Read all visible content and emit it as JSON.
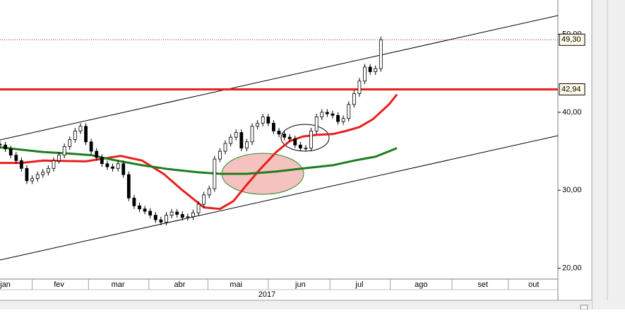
{
  "chart_data": {
    "type": "candlestick",
    "x": [
      0,
      2,
      4,
      6,
      8,
      10,
      12,
      14,
      16,
      18,
      20,
      22,
      24,
      26,
      28,
      30,
      32,
      34,
      36,
      38,
      40,
      42,
      44,
      46,
      48,
      50,
      52,
      54,
      56,
      58,
      60,
      62,
      64,
      66,
      68,
      70,
      72,
      74,
      76,
      78,
      80,
      82,
      84,
      86,
      88,
      90,
      92,
      94,
      96,
      98,
      100,
      102,
      104,
      106,
      108,
      110,
      112,
      114,
      116,
      118,
      120,
      122,
      124,
      126,
      128,
      130,
      132,
      134,
      136,
      138,
      140,
      142
    ],
    "open": [
      35.9,
      35.8,
      35.3,
      34.5,
      33.8,
      32.8,
      31.2,
      31.5,
      32.0,
      32.3,
      32.8,
      33.8,
      34.5,
      35.6,
      36.5,
      37.6,
      38.2,
      36.2,
      35.0,
      34.2,
      33.4,
      33.0,
      32.8,
      33.4,
      32.0,
      29.0,
      28.0,
      27.6,
      27.3,
      26.8,
      26.2,
      25.9,
      26.8,
      27.2,
      26.9,
      26.5,
      26.6,
      27.1,
      28.2,
      29.4,
      30.2,
      34.0,
      35.0,
      36.0,
      36.8,
      37.4,
      35.4,
      36.2,
      38.2,
      38.6,
      39.4,
      38.6,
      37.6,
      37.2,
      36.8,
      36.6,
      35.8,
      35.4,
      35.4,
      37.6,
      39.4,
      40.0,
      39.8,
      39.6,
      38.8,
      39.2,
      41.0,
      42.4,
      44.0,
      45.8,
      45.2,
      45.6
    ],
    "high": [
      36.3,
      36.2,
      35.7,
      34.9,
      34.2,
      33.2,
      31.9,
      32.4,
      32.7,
      33.2,
      34.2,
      34.9,
      36.0,
      36.9,
      38.0,
      38.6,
      38.6,
      36.6,
      35.4,
      34.6,
      33.8,
      33.4,
      33.8,
      33.8,
      32.4,
      29.4,
      28.4,
      28.0,
      27.7,
      27.2,
      26.6,
      27.2,
      27.6,
      27.6,
      27.3,
      27.0,
      27.5,
      28.6,
      29.8,
      30.6,
      34.4,
      35.4,
      36.4,
      37.2,
      37.8,
      37.8,
      36.6,
      38.6,
      39.0,
      39.8,
      39.8,
      39.0,
      38.0,
      37.6,
      37.2,
      37.0,
      36.2,
      35.8,
      38.0,
      39.8,
      40.4,
      40.4,
      40.2,
      40.0,
      39.6,
      41.4,
      42.8,
      44.4,
      46.2,
      46.2,
      46.0,
      49.7
    ],
    "low": [
      35.4,
      34.9,
      34.1,
      33.4,
      32.4,
      30.8,
      30.8,
      31.1,
      31.6,
      31.9,
      32.4,
      33.4,
      34.1,
      35.2,
      36.1,
      37.2,
      35.8,
      34.6,
      33.8,
      33.0,
      32.6,
      32.4,
      32.4,
      31.6,
      28.6,
      27.6,
      27.2,
      26.9,
      26.4,
      25.8,
      25.5,
      25.5,
      26.4,
      26.5,
      26.1,
      26.1,
      26.2,
      26.7,
      27.8,
      29.0,
      29.8,
      33.6,
      34.6,
      35.6,
      36.4,
      35.0,
      35.0,
      35.8,
      37.8,
      38.2,
      38.2,
      37.2,
      36.8,
      36.4,
      36.2,
      35.4,
      35.0,
      35.0,
      35.0,
      37.2,
      39.0,
      39.4,
      39.2,
      38.4,
      38.4,
      38.8,
      40.6,
      42.0,
      43.6,
      44.8,
      44.8,
      45.2
    ],
    "close": [
      35.8,
      35.3,
      34.5,
      33.8,
      32.8,
      31.2,
      31.5,
      32.0,
      32.3,
      32.8,
      33.8,
      34.5,
      35.6,
      36.5,
      37.6,
      38.2,
      36.2,
      35.0,
      34.2,
      33.4,
      33.0,
      32.8,
      33.4,
      32.0,
      29.0,
      28.0,
      27.6,
      27.3,
      26.8,
      26.2,
      25.9,
      26.8,
      27.2,
      26.9,
      26.5,
      26.6,
      27.1,
      28.2,
      29.4,
      30.2,
      34.0,
      35.0,
      36.0,
      36.8,
      37.4,
      35.4,
      36.2,
      38.2,
      38.6,
      39.4,
      38.6,
      37.6,
      37.2,
      36.8,
      36.6,
      35.8,
      35.4,
      35.4,
      37.6,
      39.4,
      40.0,
      39.8,
      39.6,
      38.8,
      39.2,
      41.0,
      42.4,
      44.0,
      45.8,
      45.2,
      45.6,
      49.3
    ],
    "up_color": "#ffffff",
    "down_color": "#000000",
    "xlim": [
      0,
      208
    ],
    "xticks": [
      {
        "value": 2,
        "label": "jan"
      },
      {
        "value": 22,
        "label": "fev"
      },
      {
        "value": 44,
        "label": "mar"
      },
      {
        "value": 67,
        "label": "abr"
      },
      {
        "value": 88,
        "label": "mai"
      },
      {
        "value": 112,
        "label": "jun"
      },
      {
        "value": 134,
        "label": "jul"
      },
      {
        "value": 157,
        "label": "ago"
      },
      {
        "value": 180,
        "label": "set"
      },
      {
        "value": 199,
        "label": "out"
      }
    ],
    "year_label": "2017",
    "ylim": [
      18.6,
      54.4
    ],
    "yticks": [
      {
        "value": 20,
        "label": "20,00"
      },
      {
        "value": 30,
        "label": "30,00"
      },
      {
        "value": 40,
        "label": "40,00"
      },
      {
        "value": 50,
        "label": "50,00"
      }
    ],
    "overlays": [
      {
        "type": "line",
        "color": "#e8201e",
        "x": [
          0,
          8,
          16,
          32,
          45,
          53,
          61,
          68,
          76,
          82,
          87,
          92,
          97,
          103,
          108,
          113,
          118,
          124,
          129,
          134,
          139,
          145,
          148
        ],
        "values": [
          33.5,
          33.5,
          33.8,
          33.7,
          34.4,
          33.8,
          32.1,
          30.0,
          27.8,
          27.6,
          28.6,
          30.7,
          32.7,
          34.9,
          36.3,
          36.9,
          37.1,
          37.2,
          37.6,
          38.1,
          39.1,
          41.0,
          42.3
        ]
      },
      {
        "type": "line",
        "color": "#1e7d1e",
        "x": [
          0,
          8,
          16,
          26,
          34,
          42,
          53,
          63,
          74,
          82,
          92,
          103,
          113,
          124,
          132,
          140,
          148
        ],
        "values": [
          35.5,
          35.2,
          34.9,
          34.7,
          34.5,
          33.9,
          33.2,
          32.7,
          32.3,
          32.1,
          32.1,
          32.4,
          32.8,
          33.2,
          33.8,
          34.3,
          35.4
        ]
      }
    ],
    "levels": [
      {
        "value": 42.94,
        "label": "42,94",
        "color": "#e8201e"
      }
    ],
    "last_price": {
      "value": 49.3,
      "label": "49,30",
      "color": "#a02040"
    }
  }
}
